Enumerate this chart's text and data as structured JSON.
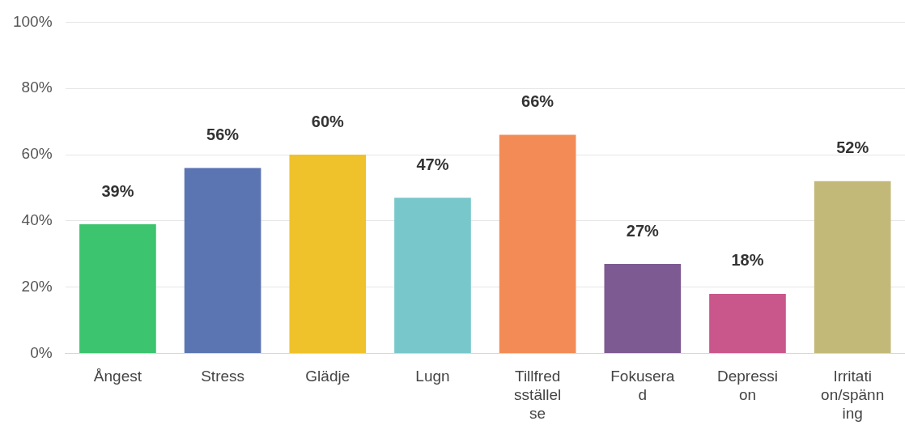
{
  "chart_data": {
    "type": "bar",
    "categories": [
      "Ångest",
      "Stress",
      "Glädje",
      "Lugn",
      "Tillfredsställelse",
      "Fokuserad",
      "Depression",
      "Irritation/spänning"
    ],
    "values": [
      39,
      56,
      60,
      47,
      66,
      27,
      18,
      52
    ],
    "colors": [
      "#3cc46e",
      "#5b74b2",
      "#efc22b",
      "#78c7cb",
      "#f38b56",
      "#7d5a91",
      "#c9578b",
      "#c2b979"
    ],
    "ylim": [
      0,
      100
    ],
    "yticks": [
      {
        "value": 0,
        "label": "0%"
      },
      {
        "value": 20,
        "label": "20%"
      },
      {
        "value": 40,
        "label": "40%"
      },
      {
        "value": 60,
        "label": "60%"
      },
      {
        "value": 80,
        "label": "80%"
      },
      {
        "value": 100,
        "label": "100%"
      }
    ],
    "value_labels": [
      "39%",
      "56%",
      "60%",
      "47%",
      "66%",
      "27%",
      "18%",
      "52%"
    ],
    "grid": "y",
    "legend": false
  }
}
